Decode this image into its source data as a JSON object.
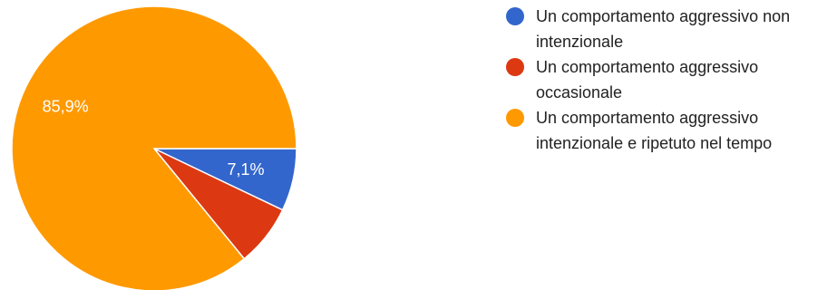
{
  "chart_data": {
    "type": "pie",
    "title": "",
    "slices": [
      {
        "label": "Un comportamento aggressivo non intenzionale",
        "value": 7.1,
        "display": "7,1%",
        "color": "#3366cc"
      },
      {
        "label": "Un comportamento aggressivo occasionale",
        "value": 7.0,
        "display": "",
        "color": "#dc3912"
      },
      {
        "label": "Un comportamento aggressivo intenzionale e ripetuto nel tempo",
        "value": 85.9,
        "display": "85,9%",
        "color": "#ff9900"
      }
    ],
    "start_angle_deg": 90,
    "direction": "clockwise",
    "legend_position": "right"
  }
}
